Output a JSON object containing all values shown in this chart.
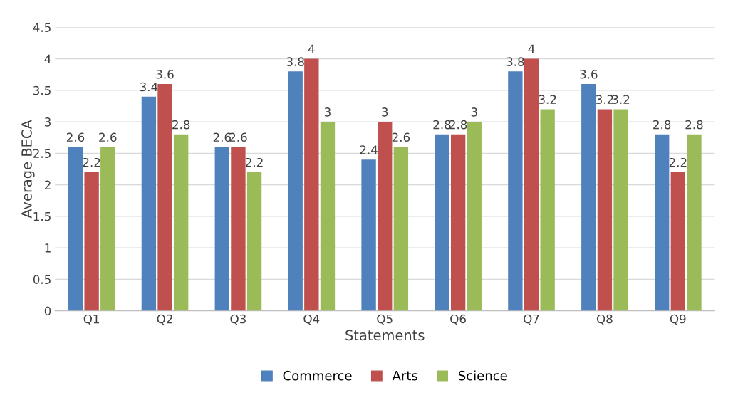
{
  "chart_data": {
    "type": "bar",
    "xlabel": "Statements",
    "ylabel": "Average BECA",
    "categories": [
      "Q1",
      "Q2",
      "Q3",
      "Q4",
      "Q5",
      "Q6",
      "Q7",
      "Q8",
      "Q9"
    ],
    "series": [
      {
        "name": "Commerce",
        "color": "#4f81bd",
        "values": [
          2.6,
          3.4,
          2.6,
          3.8,
          2.4,
          2.8,
          3.8,
          3.6,
          2.8
        ]
      },
      {
        "name": "Arts",
        "color": "#c0504d",
        "values": [
          2.2,
          3.6,
          2.6,
          4,
          3,
          2.8,
          4,
          3.2,
          2.2
        ]
      },
      {
        "name": "Science",
        "color": "#9bbb59",
        "values": [
          2.6,
          2.8,
          2.2,
          3,
          2.6,
          3,
          3.2,
          3.2,
          2.8
        ]
      }
    ],
    "ylim": [
      0,
      4.5
    ],
    "yticks": [
      0,
      0.5,
      1,
      1.5,
      2,
      2.5,
      3,
      3.5,
      4,
      4.5
    ],
    "grid": "y",
    "legend": "bottom",
    "data_labels": true
  }
}
